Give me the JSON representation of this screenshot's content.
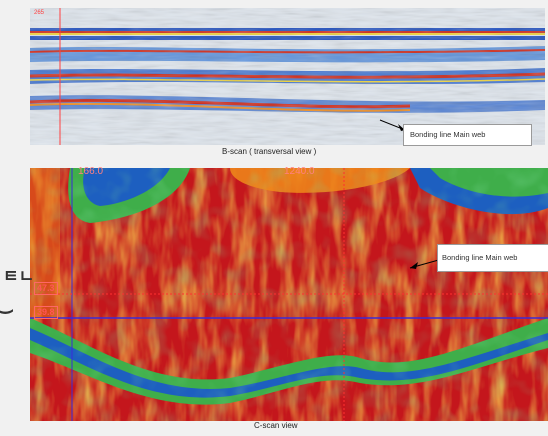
{
  "bscan": {
    "caption": "B-scan ( transversal view )",
    "callout": "Bonding line Main web",
    "marker": "265"
  },
  "cscan": {
    "caption": "C-scan view",
    "callout": "Bonding line Main web",
    "top_readout_left": "166.0",
    "top_readout_right": "1240.0",
    "readout_upper": "47.3",
    "readout_lower": "39.8"
  },
  "sidebar": {
    "mark_upper": "ㅌㄴ",
    "mark_lower": ")"
  },
  "colors": {
    "bscan_background": "#dfe6ee",
    "bscan_blue": "#1f4fbf",
    "bscan_red": "#d02818",
    "cscan_red": "#c4161c",
    "cscan_orange": "#f08a1a",
    "cscan_yellow": "#f2d63a",
    "cscan_green": "#3fae4a",
    "cscan_blue": "#1d5fc0",
    "cursor": "#3a2bd8"
  }
}
